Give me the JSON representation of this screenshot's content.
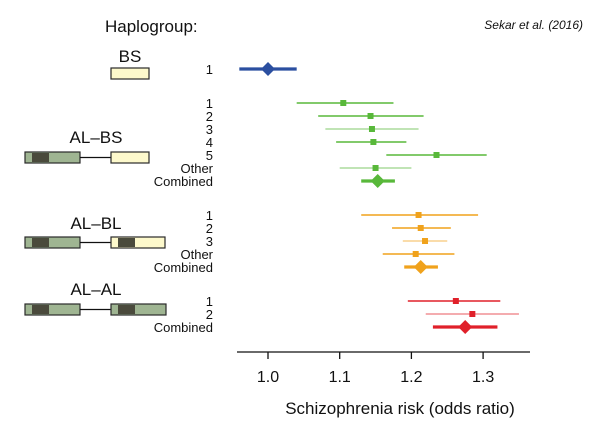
{
  "citation": "Sekar et al. (2016)",
  "header": "Haplogroup:",
  "colors": {
    "bs": "#2b4fa0",
    "al_bs": "#58b83a",
    "al_bl": "#f0a21c",
    "al_al": "#e0202a",
    "box_light": "#fdf9cc",
    "box_mid": "#9fb592",
    "box_dark": "#4a4a3c",
    "box_edge": "#2a2a2a"
  },
  "haplogroups": [
    {
      "name": "BS",
      "diagram": "bs"
    },
    {
      "name": "AL–BS",
      "diagram": "al_bs"
    },
    {
      "name": "AL–BL",
      "diagram": "al_bl"
    },
    {
      "name": "AL–AL",
      "diagram": "al_al"
    }
  ],
  "chart_data": {
    "type": "forest",
    "xlabel": "Schizophrenia risk (odds ratio)",
    "xlim": [
      0.96,
      1.36
    ],
    "xticks": [
      1.0,
      1.1,
      1.2,
      1.3
    ],
    "xtick_labels": [
      "1.0",
      "1.1",
      "1.2",
      "1.3"
    ],
    "groups": [
      {
        "name": "BS",
        "color": "#2b4fa0",
        "rows": [
          {
            "label": "1",
            "or": 1.0,
            "lo": 0.96,
            "hi": 1.04,
            "kind": "diamond",
            "ci": "thick"
          }
        ]
      },
      {
        "name": "AL–BS",
        "color": "#58b83a",
        "rows": [
          {
            "label": "1",
            "or": 1.105,
            "lo": 1.04,
            "hi": 1.175,
            "kind": "square",
            "ci": "normal"
          },
          {
            "label": "2",
            "or": 1.143,
            "lo": 1.07,
            "hi": 1.217,
            "kind": "square",
            "ci": "normal"
          },
          {
            "label": "3",
            "or": 1.145,
            "lo": 1.08,
            "hi": 1.21,
            "kind": "square",
            "ci": "thin"
          },
          {
            "label": "4",
            "or": 1.147,
            "lo": 1.095,
            "hi": 1.193,
            "kind": "square",
            "ci": "normal"
          },
          {
            "label": "5",
            "or": 1.235,
            "lo": 1.165,
            "hi": 1.305,
            "kind": "square",
            "ci": "normal"
          },
          {
            "label": "Other",
            "or": 1.15,
            "lo": 1.1,
            "hi": 1.2,
            "kind": "square",
            "ci": "thin"
          },
          {
            "label": "Combined",
            "or": 1.153,
            "lo": 1.13,
            "hi": 1.177,
            "kind": "diamond",
            "ci": "thick"
          }
        ]
      },
      {
        "name": "AL–BL",
        "color": "#f0a21c",
        "rows": [
          {
            "label": "1",
            "or": 1.21,
            "lo": 1.13,
            "hi": 1.293,
            "kind": "square",
            "ci": "normal"
          },
          {
            "label": "2",
            "or": 1.213,
            "lo": 1.173,
            "hi": 1.255,
            "kind": "square",
            "ci": "normal"
          },
          {
            "label": "3",
            "or": 1.219,
            "lo": 1.188,
            "hi": 1.25,
            "kind": "square",
            "ci": "thin"
          },
          {
            "label": "Other",
            "or": 1.206,
            "lo": 1.16,
            "hi": 1.26,
            "kind": "square",
            "ci": "normal"
          },
          {
            "label": "Combined",
            "or": 1.213,
            "lo": 1.19,
            "hi": 1.237,
            "kind": "diamond",
            "ci": "thick"
          }
        ]
      },
      {
        "name": "AL–AL",
        "color": "#e0202a",
        "rows": [
          {
            "label": "1",
            "or": 1.262,
            "lo": 1.195,
            "hi": 1.324,
            "kind": "square",
            "ci": "normal"
          },
          {
            "label": "2",
            "or": 1.285,
            "lo": 1.22,
            "hi": 1.35,
            "kind": "square",
            "ci": "thin"
          },
          {
            "label": "Combined",
            "or": 1.275,
            "lo": 1.23,
            "hi": 1.32,
            "kind": "diamond",
            "ci": "thick"
          }
        ]
      }
    ]
  }
}
